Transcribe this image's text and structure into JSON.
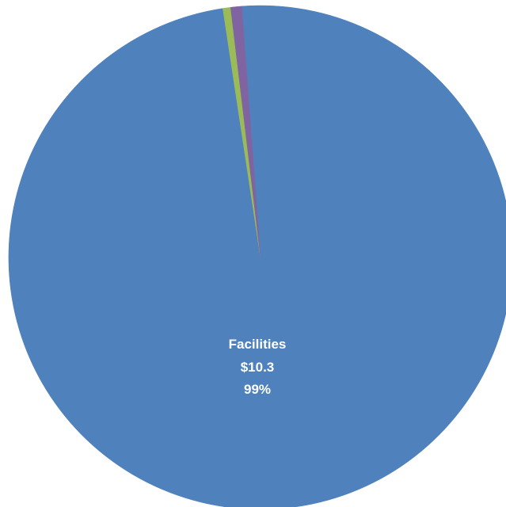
{
  "chart_data": {
    "type": "pie",
    "title": "",
    "start_angle_deg": -4.3,
    "slices": [
      {
        "name": "Facilities",
        "value_label": "$10.3",
        "pct_label": "99%",
        "value": 10.3,
        "percent": 98.8,
        "color": "#4f81bd"
      },
      {
        "name": "",
        "value_label": "",
        "pct_label": "",
        "value": 0.05,
        "percent": 0.5,
        "color": "#9bbb59"
      },
      {
        "name": "",
        "value_label": "",
        "pct_label": "",
        "value": 0.07,
        "percent": 0.7,
        "color": "#8064a2"
      }
    ]
  }
}
